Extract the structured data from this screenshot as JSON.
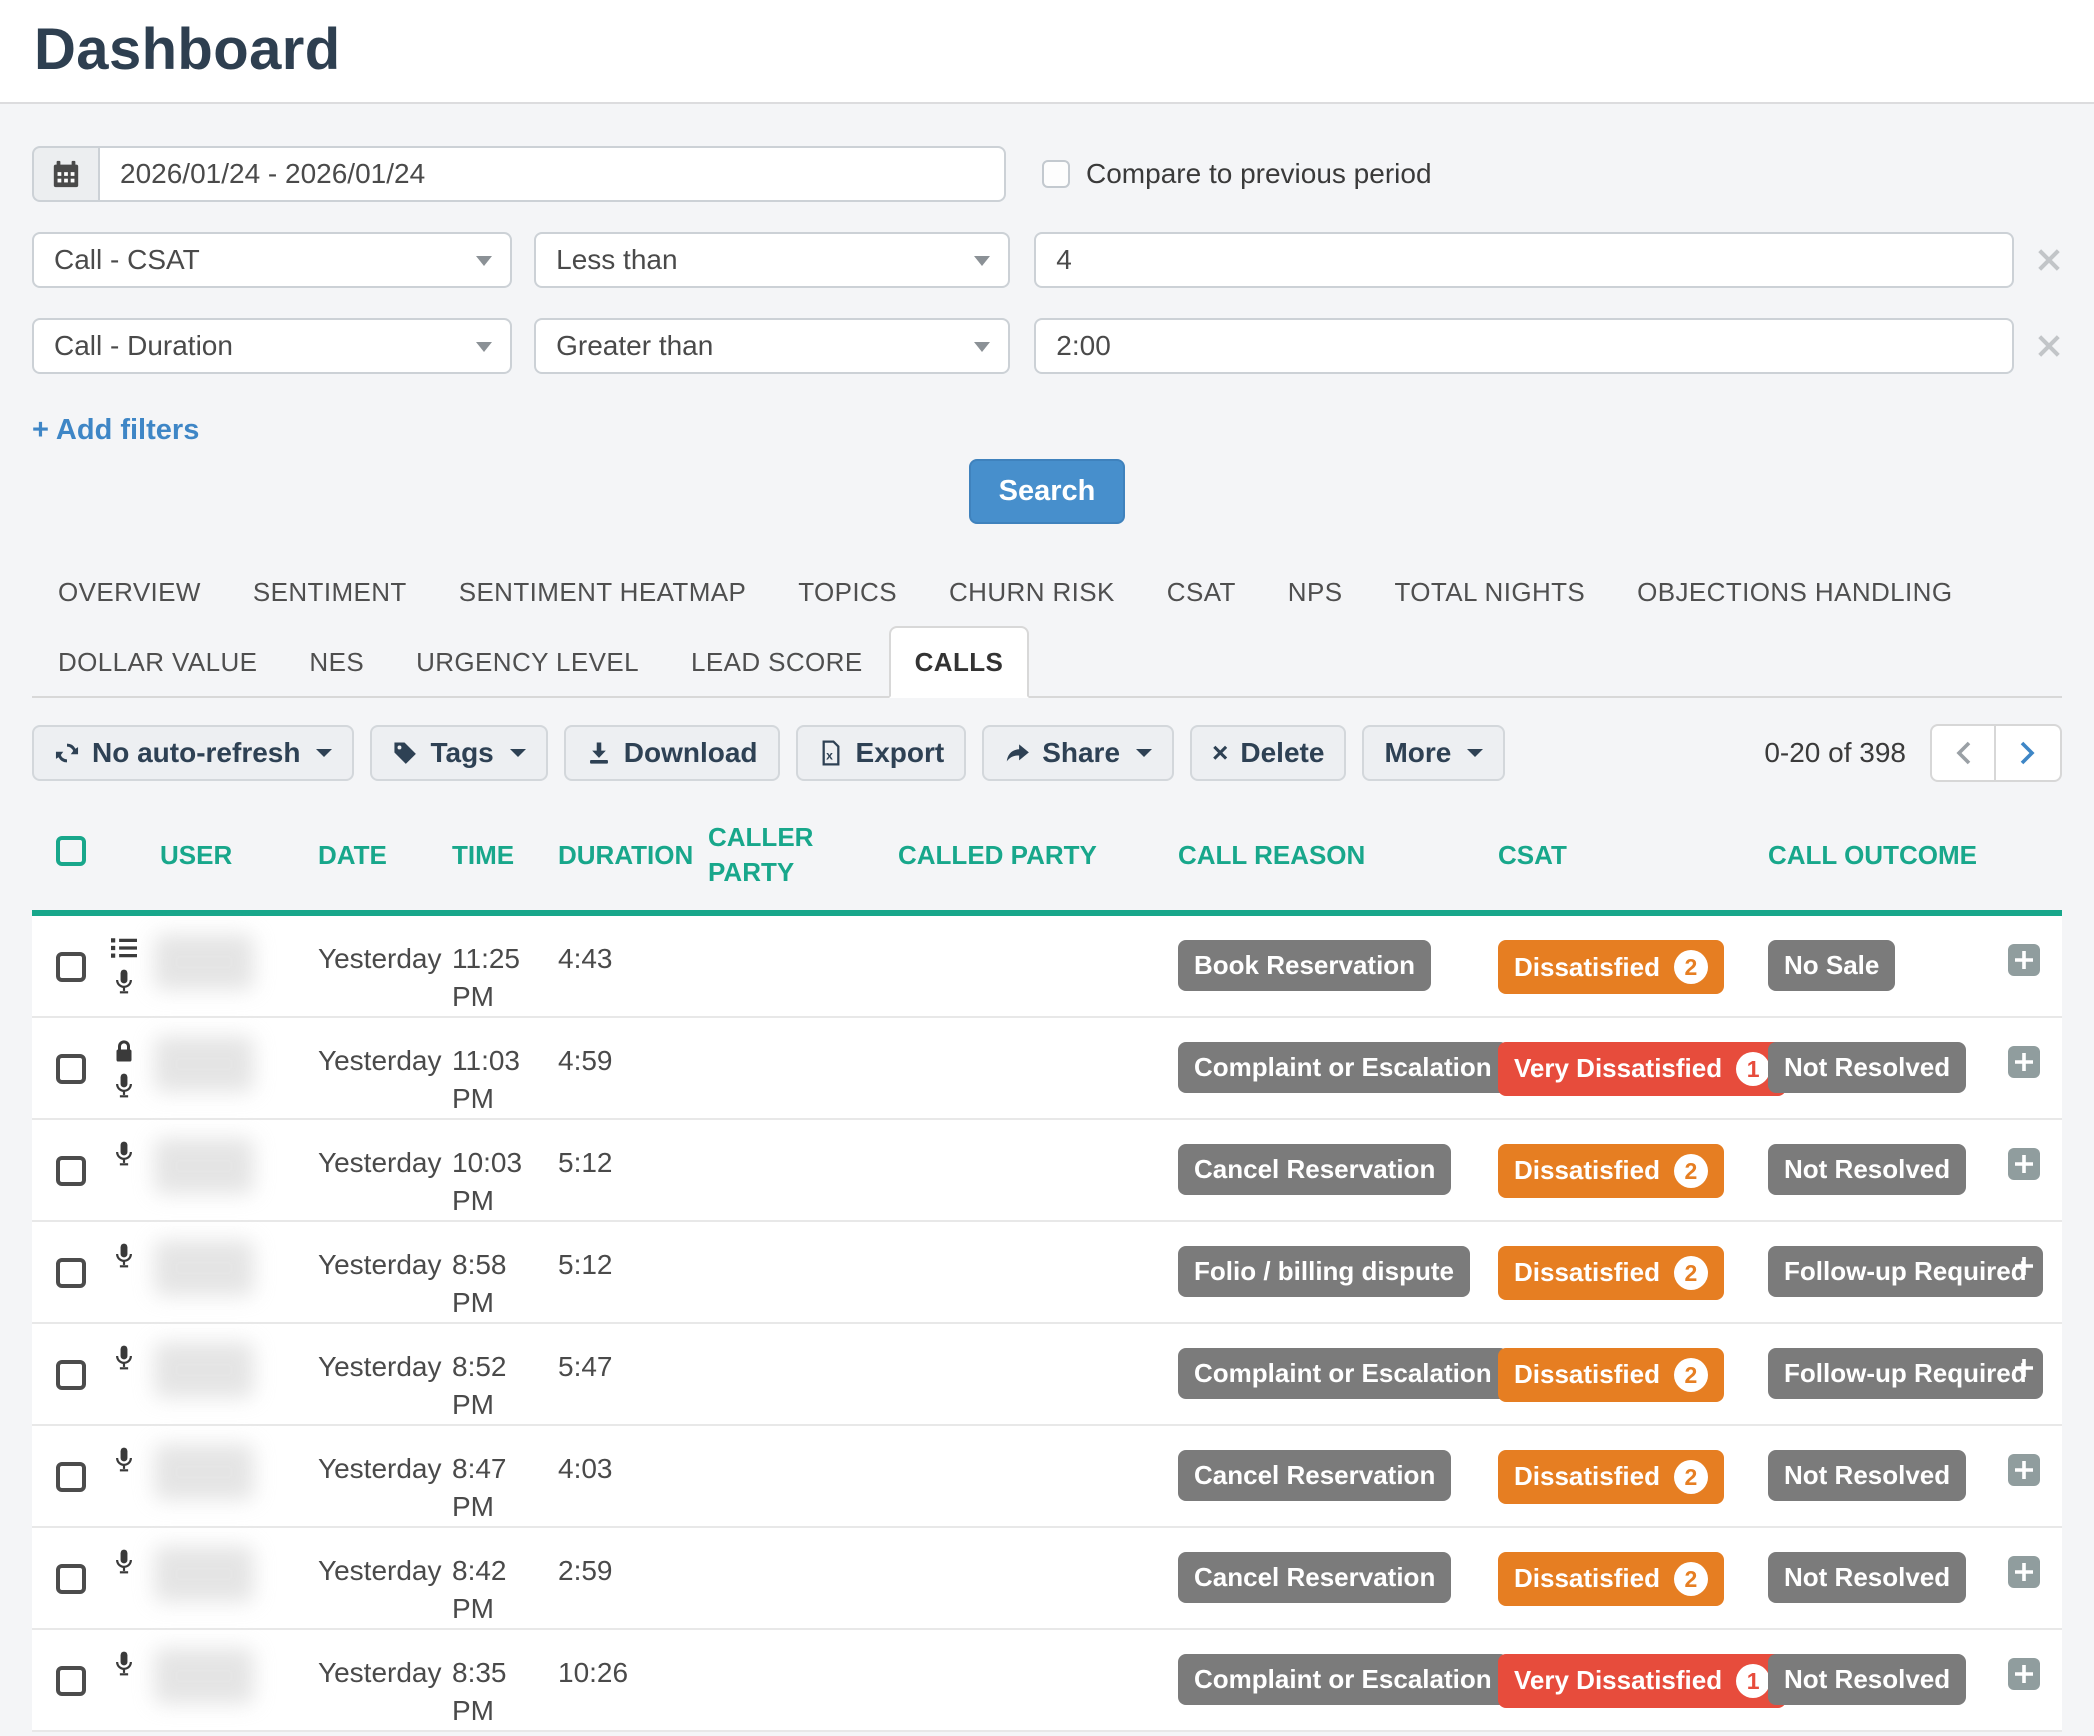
{
  "page": {
    "title": "Dashboard"
  },
  "filters": {
    "date_range": "2026/01/24 - 2026/01/24",
    "compare_label": "Compare to previous period",
    "add_filters_label": "+ Add filters",
    "search_label": "Search",
    "rows": [
      {
        "field": "Call - CSAT",
        "operator": "Less than",
        "value": "4"
      },
      {
        "field": "Call - Duration",
        "operator": "Greater than",
        "value": "2:00"
      }
    ]
  },
  "tabs": {
    "active": "CALLS",
    "items": [
      "OVERVIEW",
      "SENTIMENT",
      "SENTIMENT HEATMAP",
      "TOPICS",
      "CHURN RISK",
      "CSAT",
      "NPS",
      "TOTAL NIGHTS",
      "OBJECTIONS HANDLING",
      "DOLLAR VALUE",
      "NES",
      "URGENCY LEVEL",
      "LEAD SCORE",
      "CALLS"
    ]
  },
  "toolbar": {
    "buttons": {
      "auto_refresh": "No auto-refresh",
      "tags": "Tags",
      "download": "Download",
      "export": "Export",
      "share": "Share",
      "delete": "Delete",
      "more": "More"
    },
    "pagination": {
      "range_label": "0-20 of 398"
    }
  },
  "table": {
    "columns": {
      "user": "USER",
      "date": "DATE",
      "time": "TIME",
      "duration": "DURATION",
      "caller_party": "CALLER PARTY",
      "called_party": "CALLED PARTY",
      "call_reason": "CALL REASON",
      "csat": "CSAT",
      "call_outcome": "CALL OUTCOME"
    },
    "rows": [
      {
        "icons": [
          "list-icon",
          "microphone-icon"
        ],
        "date": "Yesterday",
        "time": "11:25 PM",
        "duration": "4:43",
        "call_reason": "Book Reservation",
        "csat": {
          "label": "Dissatisfied",
          "count": "2",
          "color": "#e67e22"
        },
        "call_outcome": "No Sale"
      },
      {
        "icons": [
          "lock-icon",
          "microphone-icon"
        ],
        "date": "Yesterday",
        "time": "11:03 PM",
        "duration": "4:59",
        "call_reason": "Complaint or Escalation",
        "csat": {
          "label": "Very Dissatisfied",
          "count": "1",
          "color": "#e74c3c"
        },
        "call_outcome": "Not Resolved"
      },
      {
        "icons": [
          "microphone-icon"
        ],
        "date": "Yesterday",
        "time": "10:03 PM",
        "duration": "5:12",
        "call_reason": "Cancel Reservation",
        "csat": {
          "label": "Dissatisfied",
          "count": "2",
          "color": "#e67e22"
        },
        "call_outcome": "Not Resolved"
      },
      {
        "icons": [
          "microphone-icon"
        ],
        "date": "Yesterday",
        "time": "8:58 PM",
        "duration": "5:12",
        "call_reason": "Folio / billing dispute",
        "csat": {
          "label": "Dissatisfied",
          "count": "2",
          "color": "#e67e22"
        },
        "call_outcome": "Follow-up Required"
      },
      {
        "icons": [
          "microphone-icon"
        ],
        "date": "Yesterday",
        "time": "8:52 PM",
        "duration": "5:47",
        "call_reason": "Complaint or Escalation",
        "csat": {
          "label": "Dissatisfied",
          "count": "2",
          "color": "#e67e22"
        },
        "call_outcome": "Follow-up Required"
      },
      {
        "icons": [
          "microphone-icon"
        ],
        "date": "Yesterday",
        "time": "8:47 PM",
        "duration": "4:03",
        "call_reason": "Cancel Reservation",
        "csat": {
          "label": "Dissatisfied",
          "count": "2",
          "color": "#e67e22"
        },
        "call_outcome": "Not Resolved"
      },
      {
        "icons": [
          "microphone-icon"
        ],
        "date": "Yesterday",
        "time": "8:42 PM",
        "duration": "2:59",
        "call_reason": "Cancel Reservation",
        "csat": {
          "label": "Dissatisfied",
          "count": "2",
          "color": "#e67e22"
        },
        "call_outcome": "Not Resolved"
      },
      {
        "icons": [
          "microphone-icon"
        ],
        "date": "Yesterday",
        "time": "8:35 PM",
        "duration": "10:26",
        "call_reason": "Complaint or Escalation",
        "csat": {
          "label": "Very Dissatisfied",
          "count": "1",
          "color": "#e74c3c"
        },
        "call_outcome": "Not Resolved"
      }
    ]
  },
  "colors": {
    "accent_teal": "#18a78b",
    "primary_blue": "#478fcc",
    "badge_gray": "#7b7b7b",
    "csat_dissatisfied": "#e67e22",
    "csat_very_dissatisfied": "#e74c3c"
  }
}
